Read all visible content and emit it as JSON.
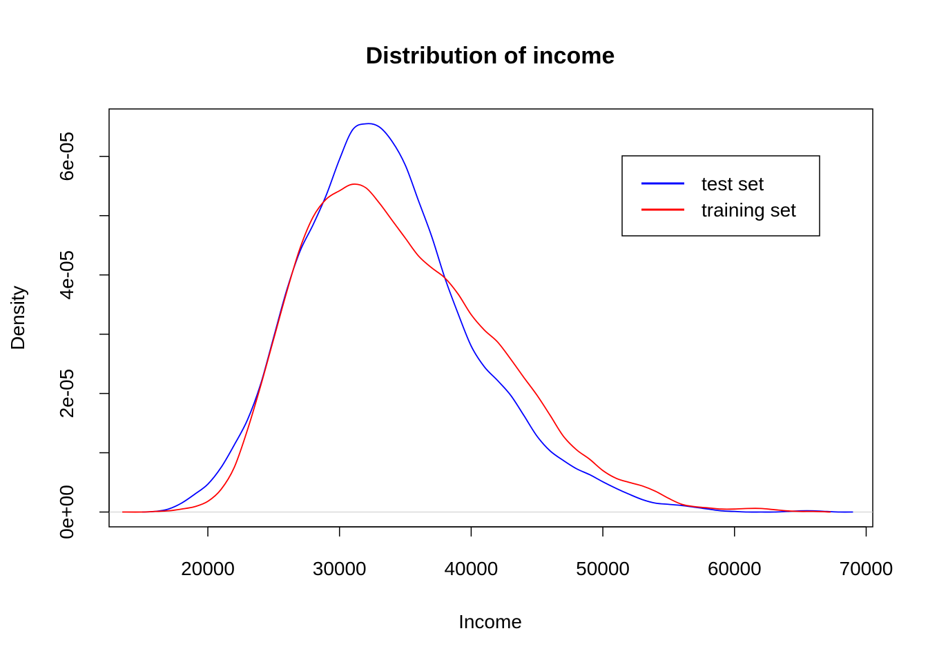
{
  "chart_data": {
    "type": "line",
    "title": "Distribution of income",
    "xlabel": "Income",
    "ylabel": "Density",
    "xlim": [
      12500,
      70500
    ],
    "ylim": [
      -2.5e-06,
      6.8e-05
    ],
    "xticks": [
      20000,
      30000,
      40000,
      50000,
      60000,
      70000
    ],
    "xtick_labels": [
      "20000",
      "30000",
      "40000",
      "50000",
      "60000",
      "70000"
    ],
    "yticks": [
      0,
      1e-05,
      2e-05,
      3e-05,
      4e-05,
      5e-05,
      6e-05
    ],
    "ytick_labels": [
      "0e+00",
      "",
      "2e-05",
      "",
      "4e-05",
      "",
      "6e-05"
    ],
    "grid": false,
    "baseline": 0,
    "legend": {
      "position": "top-right",
      "entries": [
        {
          "label": "test set",
          "color": "#0000ff"
        },
        {
          "label": "training set",
          "color": "#ff0000"
        }
      ]
    },
    "series": [
      {
        "name": "test set",
        "color": "#0000ff",
        "x": [
          15000,
          16000,
          17000,
          18000,
          19000,
          20000,
          21000,
          22000,
          23000,
          24000,
          25000,
          26000,
          27000,
          28000,
          29000,
          30000,
          31000,
          32000,
          33000,
          34000,
          35000,
          36000,
          37000,
          38000,
          39000,
          40000,
          41000,
          42000,
          43000,
          44000,
          45000,
          46000,
          47000,
          48000,
          49000,
          50000,
          51000,
          52000,
          53000,
          54000,
          55000,
          56000,
          57000,
          58000,
          59000,
          60000,
          61000,
          62000,
          63000,
          64000,
          65000,
          66000,
          67000,
          68000,
          69000
        ],
        "y": [
          0.0,
          1e-07,
          5e-07,
          1.5e-06,
          3e-06,
          4.7e-06,
          7.5e-06,
          1.13e-05,
          1.55e-05,
          2.15e-05,
          2.95e-05,
          3.75e-05,
          4.4e-05,
          4.85e-05,
          5.35e-05,
          5.95e-05,
          6.45e-05,
          6.55e-05,
          6.5e-05,
          6.25e-05,
          5.85e-05,
          5.25e-05,
          4.65e-05,
          3.95e-05,
          3.35e-05,
          2.8e-05,
          2.45e-05,
          2.22e-05,
          1.97e-05,
          1.63e-05,
          1.28e-05,
          1.03e-05,
          8.7e-06,
          7.3e-06,
          6.3e-06,
          5.1e-06,
          4e-06,
          3e-06,
          2.1e-06,
          1.5e-06,
          1.3e-06,
          1.1e-06,
          8e-07,
          5e-07,
          2e-07,
          1e-07,
          0.0,
          0.0,
          0.0,
          1e-07,
          2e-07,
          2e-07,
          1e-07,
          0.0,
          0.0
        ]
      },
      {
        "name": "training set",
        "color": "#ff0000",
        "x": [
          13500,
          15000,
          16000,
          17000,
          18000,
          19000,
          20000,
          21000,
          22000,
          23000,
          24000,
          25000,
          26000,
          27000,
          28000,
          29000,
          30000,
          31000,
          32000,
          33000,
          34000,
          35000,
          36000,
          37000,
          38000,
          39000,
          40000,
          41000,
          42000,
          43000,
          44000,
          45000,
          46000,
          47000,
          48000,
          49000,
          50000,
          51000,
          52000,
          53000,
          54000,
          55000,
          56000,
          57000,
          58000,
          59000,
          60000,
          61000,
          62000,
          63000,
          64000,
          65000,
          66000,
          67300
        ],
        "y": [
          0.0,
          0.0,
          1e-07,
          2e-07,
          5e-07,
          9e-07,
          1.8e-06,
          3.8e-06,
          7.5e-06,
          1.38e-05,
          2.12e-05,
          2.92e-05,
          3.72e-05,
          4.45e-05,
          4.98e-05,
          5.28e-05,
          5.42e-05,
          5.53e-05,
          5.47e-05,
          5.22e-05,
          4.92e-05,
          4.62e-05,
          4.32e-05,
          4.12e-05,
          3.95e-05,
          3.68e-05,
          3.33e-05,
          3.07e-05,
          2.87e-05,
          2.58e-05,
          2.27e-05,
          1.97e-05,
          1.63e-05,
          1.28e-05,
          1.05e-05,
          8.9e-06,
          7e-06,
          5.7e-06,
          5e-06,
          4.4e-06,
          3.5e-06,
          2.3e-06,
          1.3e-06,
          9e-07,
          7e-07,
          5e-07,
          5e-07,
          6e-07,
          6e-07,
          4e-07,
          2e-07,
          1e-07,
          1e-07,
          0.0
        ]
      }
    ]
  }
}
